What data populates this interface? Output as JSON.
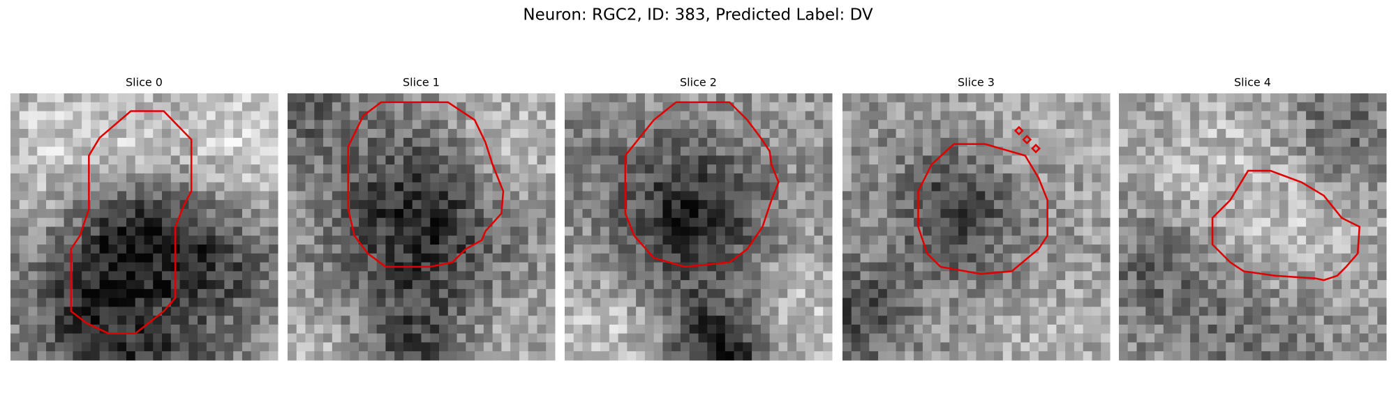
{
  "title": "Neuron: RGC2, ID: 383, Predicted Label: DV",
  "panels": [
    {
      "title": "Slice 0"
    },
    {
      "title": "Slice 1"
    },
    {
      "title": "Slice 2"
    },
    {
      "title": "Slice 3"
    },
    {
      "title": "Slice 4"
    }
  ]
}
